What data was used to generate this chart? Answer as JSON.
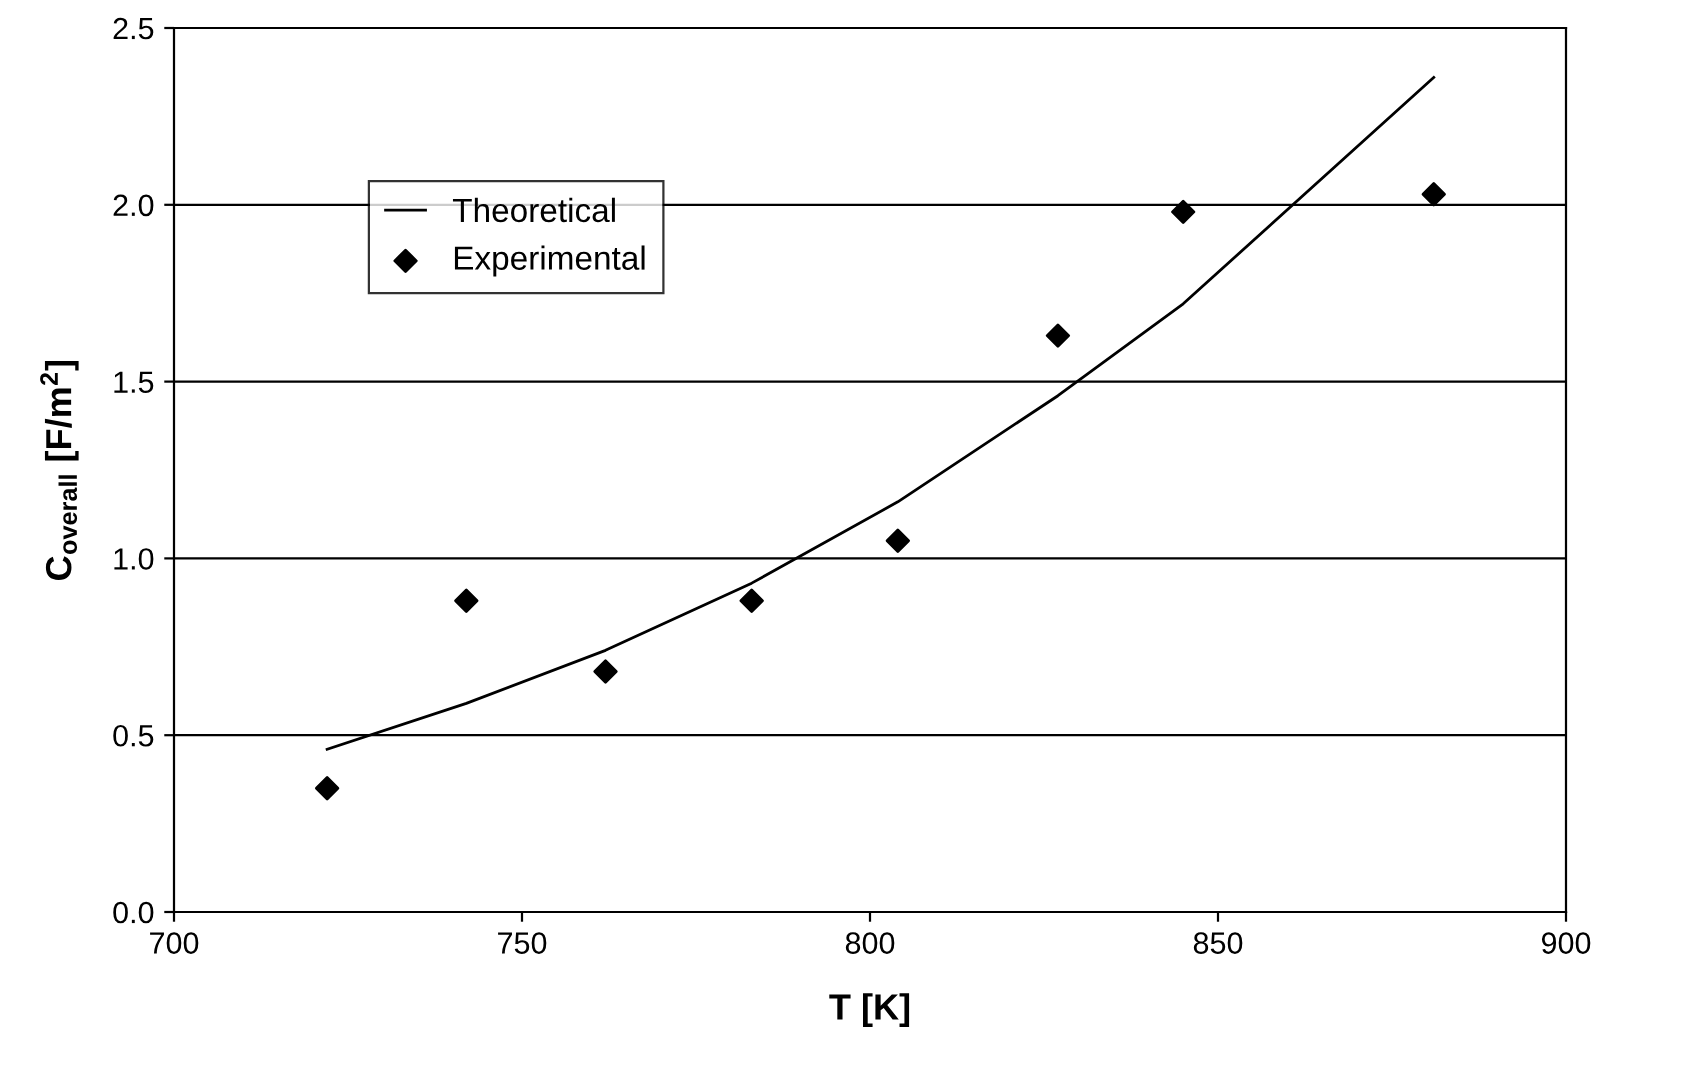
{
  "chart_data": {
    "type": "scatter",
    "xlabel": "T [K]",
    "ylabel": "C$_{overall}$ [F/m$^{2}$]",
    "x": [
      722,
      742,
      762,
      783,
      804,
      827,
      845,
      881
    ],
    "series": [
      {
        "name": "Theoretical",
        "type": "line",
        "color": "#000000",
        "marker": "none",
        "line_style": "solid",
        "values": [
          0.46,
          0.59,
          0.74,
          0.93,
          1.16,
          1.46,
          1.72,
          2.36
        ]
      },
      {
        "name": "Experimental",
        "color": "#000000",
        "marker": "diamond",
        "values": [
          0.35,
          0.88,
          0.68,
          0.88,
          1.05,
          1.63,
          1.98,
          2.03
        ]
      }
    ],
    "xlim": [
      700,
      900
    ],
    "xticks": [
      700,
      750,
      800,
      850,
      900
    ],
    "ylim": [
      0,
      2.5
    ],
    "yticks": [
      {
        "value": 0,
        "label": "0.0"
      },
      0.5,
      {
        "value": 1,
        "label": "1.0"
      },
      1.5,
      {
        "value": 2,
        "label": "2.0"
      },
      2.5
    ],
    "grid": "y",
    "legend": "top left"
  }
}
